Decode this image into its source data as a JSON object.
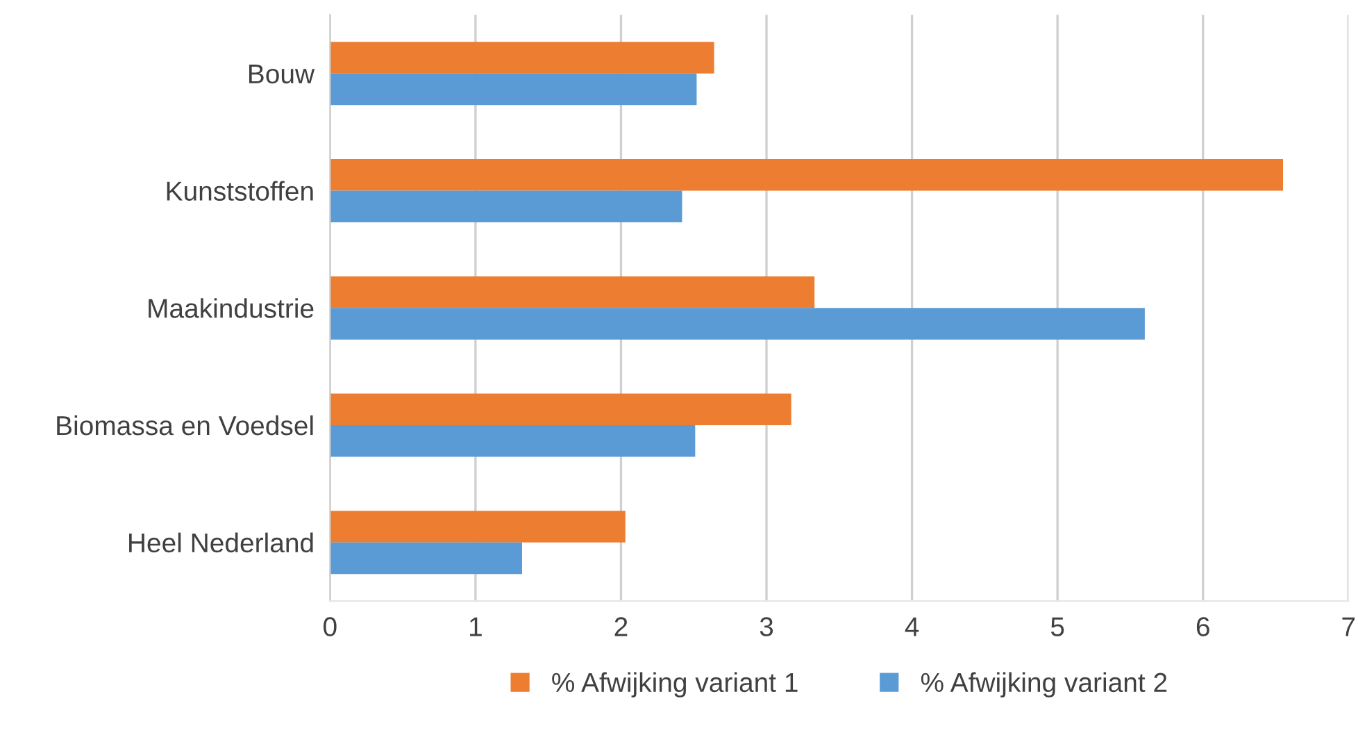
{
  "chart_data": {
    "type": "bar",
    "orientation": "horizontal",
    "categories": [
      "Bouw",
      "Kunststoffen",
      "Maakindustrie",
      "Biomassa en Voedsel",
      "Heel Nederland"
    ],
    "series": [
      {
        "name": "% Afwijking variant 1",
        "color": "#ed7d31",
        "values": [
          2.64,
          6.55,
          3.33,
          3.17,
          2.03
        ]
      },
      {
        "name": "% Afwijking variant 2",
        "color": "#5b9bd5",
        "values": [
          2.52,
          2.42,
          5.6,
          2.51,
          1.32
        ]
      }
    ],
    "xlim": [
      0,
      7
    ],
    "xticks": [
      0,
      1,
      2,
      3,
      4,
      5,
      6,
      7
    ],
    "grid": "x",
    "legend": "bottom"
  }
}
